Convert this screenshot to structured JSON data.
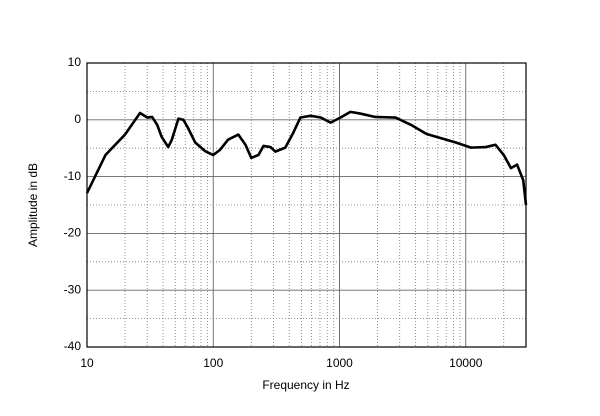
{
  "chart_data": {
    "type": "line",
    "xlabel": "Frequency in Hz",
    "ylabel": "Amplitude in dB",
    "log_x": true,
    "grid": true,
    "xlim": [
      10,
      30000
    ],
    "ylim": [
      -40,
      10
    ],
    "xticks": [
      10,
      100,
      1000,
      10000
    ],
    "yticks": [
      -40,
      -30,
      -20,
      -10,
      0,
      10
    ],
    "xminorticks": [
      20,
      30,
      40,
      50,
      60,
      70,
      80,
      90,
      200,
      300,
      400,
      500,
      600,
      700,
      800,
      900,
      2000,
      3000,
      4000,
      5000,
      6000,
      7000,
      8000,
      9000,
      20000
    ],
    "yminorticks": [
      -35,
      -25,
      -15,
      -5,
      5
    ],
    "series": [
      {
        "color": "#000000",
        "x": [
          10,
          14,
          20,
          26.3,
          30,
          32.8,
          36,
          39,
          44,
          47,
          53,
          58,
          63,
          72,
          86,
          100,
          113,
          131,
          158,
          180,
          200,
          228,
          250,
          284,
          310,
          372,
          430,
          490,
          590,
          710,
          850,
          1020,
          1220,
          1460,
          1920,
          2780,
          3690,
          4890,
          6300,
          8340,
          11000,
          14400,
          17200,
          20000,
          22800,
          25500,
          28500,
          30000
        ],
        "values": [
          -12.9,
          -6.2,
          -2.6,
          1.2,
          0.4,
          0.5,
          -0.9,
          -3,
          -4.8,
          -3.5,
          0.2,
          0,
          -1.4,
          -4,
          -5.5,
          -6.2,
          -5.3,
          -3.5,
          -2.6,
          -4.4,
          -6.7,
          -6.2,
          -4.6,
          -4.8,
          -5.6,
          -4.9,
          -2.3,
          0.4,
          0.7,
          0.4,
          -0.5,
          0.4,
          1.4,
          1.1,
          0.5,
          0.4,
          -0.9,
          -2.5,
          -3.2,
          -4.0,
          -4.9,
          -4.8,
          -4.4,
          -6.2,
          -8.5,
          -7.9,
          -10.6,
          -15
        ]
      }
    ]
  }
}
